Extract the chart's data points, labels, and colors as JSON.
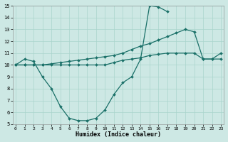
{
  "bg_color": "#cde8e4",
  "grid_color": "#aad4cc",
  "line_color": "#1a7068",
  "xlim_min": -0.3,
  "xlim_max": 23.3,
  "ylim_min": 5,
  "ylim_max": 15,
  "xticks": [
    0,
    1,
    2,
    3,
    4,
    5,
    6,
    7,
    8,
    9,
    10,
    11,
    12,
    13,
    14,
    15,
    16,
    17,
    18,
    19,
    20,
    21,
    22,
    23
  ],
  "yticks": [
    5,
    6,
    7,
    8,
    9,
    10,
    11,
    12,
    13,
    14,
    15
  ],
  "xlabel": "Humidex (Indice chaleur)",
  "series": [
    {
      "x": [
        0,
        1,
        2,
        3,
        4,
        5,
        6,
        7,
        8,
        9,
        10,
        11,
        12,
        13,
        14,
        15,
        16,
        17,
        18,
        19,
        20,
        21,
        22,
        23
      ],
      "y": [
        10.0,
        10.0,
        10.0,
        10.0,
        10.1,
        10.2,
        10.3,
        10.4,
        10.5,
        10.6,
        10.7,
        10.8,
        11.0,
        11.3,
        11.6,
        11.8,
        12.1,
        12.4,
        12.7,
        13.0,
        12.8,
        10.5,
        10.5,
        10.5
      ]
    },
    {
      "x": [
        0,
        1,
        2,
        3,
        4,
        5,
        6,
        7,
        8,
        9,
        10,
        11,
        12,
        13,
        14,
        15,
        16,
        17,
        18,
        19,
        20,
        21,
        22,
        23
      ],
      "y": [
        10.0,
        10.0,
        10.0,
        10.0,
        10.0,
        10.0,
        10.0,
        10.0,
        10.0,
        10.0,
        10.0,
        10.2,
        10.4,
        10.5,
        10.6,
        10.8,
        10.9,
        11.0,
        11.0,
        11.0,
        11.0,
        10.5,
        10.5,
        11.0
      ]
    },
    {
      "x": [
        0,
        1,
        2,
        3,
        4,
        5,
        6,
        7,
        8,
        9,
        10,
        11,
        12,
        13,
        14,
        15,
        16,
        17
      ],
      "y": [
        10.0,
        10.5,
        10.3,
        9.0,
        8.0,
        6.5,
        5.5,
        5.3,
        5.3,
        5.5,
        6.2,
        7.5,
        8.5,
        9.0,
        10.5,
        15.0,
        14.9,
        14.5
      ]
    }
  ]
}
